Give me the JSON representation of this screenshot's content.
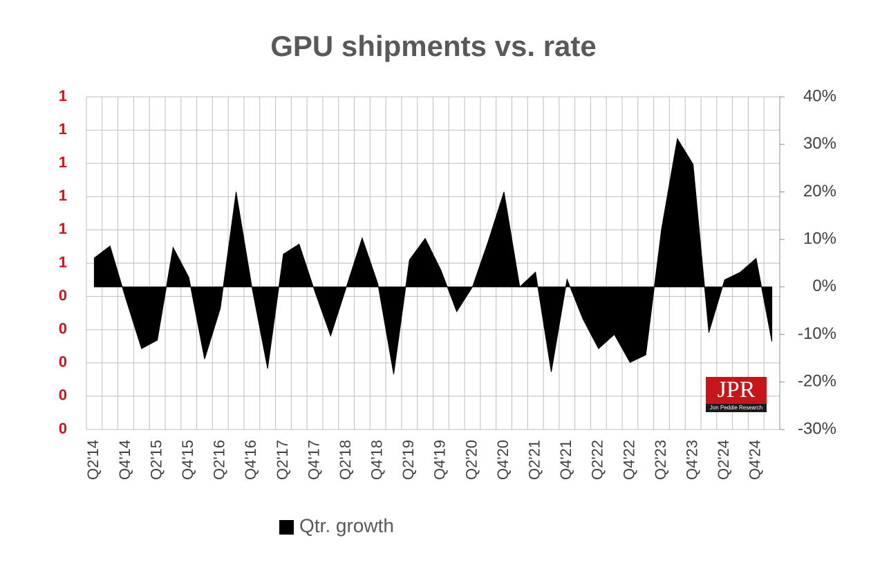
{
  "chart_data": {
    "type": "area",
    "title": "GPU shipments vs. rate",
    "categories": [
      "Q2'14",
      null,
      "Q4'14",
      null,
      "Q2'15",
      null,
      "Q4'15",
      null,
      "Q2'16",
      null,
      "Q4'16",
      null,
      "Q2'17",
      null,
      "Q4'17",
      null,
      "Q2'18",
      null,
      "Q4'18",
      null,
      "Q2'19",
      null,
      "Q4'19",
      null,
      "Q2'20",
      null,
      "Q4'20",
      null,
      "Q2'21",
      null,
      "Q4'21",
      null,
      "Q2'22",
      null,
      "Q4'22",
      null,
      "Q2'23",
      null,
      "Q4'23",
      null,
      "Q2'24",
      null,
      "Q4'24",
      null
    ],
    "series": [
      {
        "name": "Qtr. growth",
        "color": "#000000",
        "axis": "y2",
        "values": [
          6.1,
          8.6,
          -2.5,
          -13,
          -11.2,
          8.3,
          2,
          -15.2,
          -4.5,
          20,
          0,
          -17.2,
          6.9,
          9,
          -1,
          -10.3,
          0,
          10.3,
          0.6,
          -18.4,
          5.7,
          10.2,
          3.5,
          -5.2,
          0,
          9.6,
          20,
          0,
          3.1,
          -17.9,
          1.6,
          -6.7,
          -13,
          -10,
          -15.9,
          -14.3,
          12.2,
          31.2,
          25.8,
          -9.6,
          1.5,
          3.1,
          6,
          -11.5
        ]
      }
    ],
    "ylim": [
      0,
      1
    ],
    "yticks": [
      {
        "value": 0,
        "label": "0"
      },
      {
        "value": 0.1,
        "label": "0"
      },
      {
        "value": 0.2,
        "label": "0"
      },
      {
        "value": 0.3,
        "label": "0"
      },
      {
        "value": 0.4,
        "label": "0"
      },
      {
        "value": 0.5,
        "label": "1"
      },
      {
        "value": 0.6,
        "label": "1"
      },
      {
        "value": 0.7,
        "label": "1"
      },
      {
        "value": 0.8,
        "label": "1"
      },
      {
        "value": 0.9,
        "label": "1"
      },
      {
        "value": 1,
        "label": "1"
      }
    ],
    "y2lim": [
      -30,
      40
    ],
    "y2ticks": [
      {
        "value": -30,
        "label": "-30%"
      },
      {
        "value": -20,
        "label": "-20%"
      },
      {
        "value": -10,
        "label": "-10%"
      },
      {
        "value": 0,
        "label": "0%"
      },
      {
        "value": 10,
        "label": "10%"
      },
      {
        "value": 20,
        "label": "20%"
      },
      {
        "value": 30,
        "label": "30%"
      },
      {
        "value": 40,
        "label": "40%"
      }
    ],
    "grid": true,
    "ytick_color": "#d0131c"
  },
  "logo": {
    "text": "JPR",
    "subtext": "Jon Peddie Research"
  }
}
